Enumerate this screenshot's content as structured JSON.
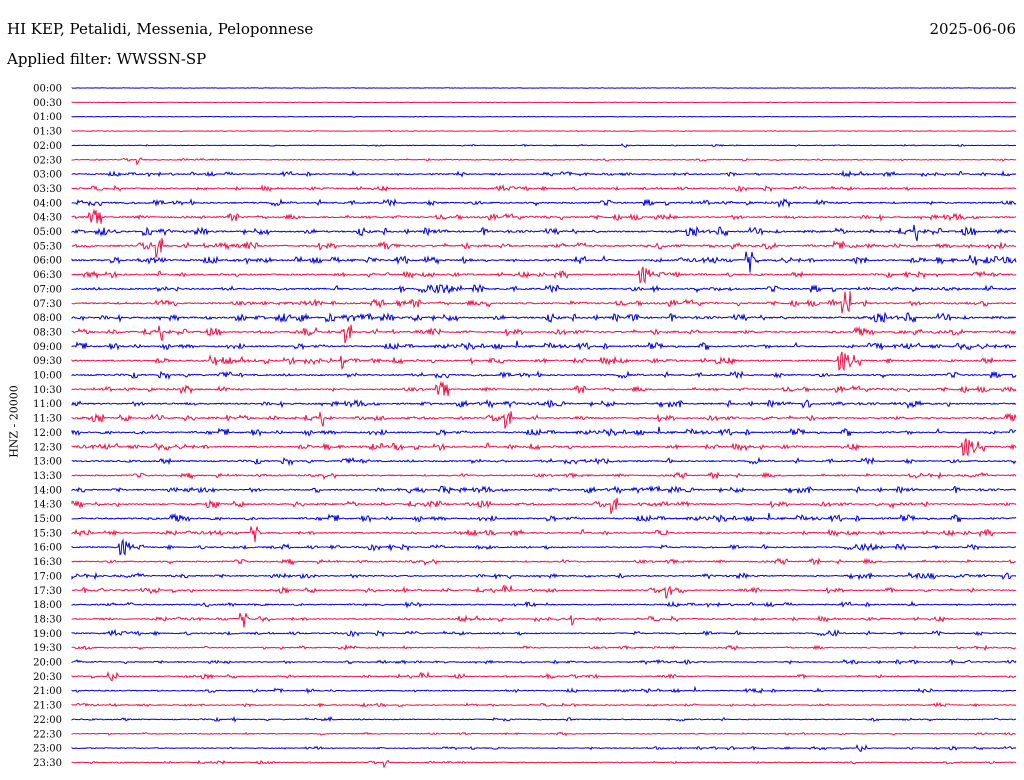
{
  "header": {
    "station": "HI KEP, Petalidi, Messenia, Peloponnese",
    "date": "2025-06-06",
    "filter": "Applied filter: WWSSN-SP",
    "channel_label": "HNZ - 20000"
  },
  "colors": {
    "blue": "#0000dd",
    "red": "#ee1144"
  },
  "chart_data": {
    "type": "line",
    "title": "HI KEP, Petalidi, Messenia, Peloponnese",
    "ylabel": "HNZ - 20000",
    "grid": false,
    "series_colors_alternate": [
      "blue",
      "red"
    ],
    "rows": [
      {
        "label": "00:00",
        "activity": 0.05
      },
      {
        "label": "00:30",
        "activity": 0.0
      },
      {
        "label": "01:00",
        "activity": 0.05
      },
      {
        "label": "01:30",
        "activity": 0.1
      },
      {
        "label": "02:00",
        "activity": 0.15
      },
      {
        "label": "02:30",
        "activity": 0.3
      },
      {
        "label": "03:00",
        "activity": 0.5
      },
      {
        "label": "03:30",
        "activity": 0.55
      },
      {
        "label": "04:00",
        "activity": 0.75
      },
      {
        "label": "04:30",
        "activity": 0.75
      },
      {
        "label": "05:00",
        "activity": 0.8
      },
      {
        "label": "05:30",
        "activity": 0.8
      },
      {
        "label": "06:00",
        "activity": 0.8
      },
      {
        "label": "06:30",
        "activity": 0.65
      },
      {
        "label": "07:00",
        "activity": 0.85
      },
      {
        "label": "07:30",
        "activity": 0.8
      },
      {
        "label": "08:00",
        "activity": 0.85
      },
      {
        "label": "08:30",
        "activity": 0.75
      },
      {
        "label": "09:00",
        "activity": 0.7
      },
      {
        "label": "09:30",
        "activity": 0.75
      },
      {
        "label": "10:00",
        "activity": 0.75
      },
      {
        "label": "10:30",
        "activity": 0.75
      },
      {
        "label": "11:00",
        "activity": 0.75
      },
      {
        "label": "11:30",
        "activity": 0.7
      },
      {
        "label": "12:00",
        "activity": 0.7
      },
      {
        "label": "12:30",
        "activity": 0.7
      },
      {
        "label": "13:00",
        "activity": 0.7
      },
      {
        "label": "13:30",
        "activity": 0.6
      },
      {
        "label": "14:00",
        "activity": 0.7
      },
      {
        "label": "14:30",
        "activity": 0.65
      },
      {
        "label": "15:00",
        "activity": 0.7
      },
      {
        "label": "15:30",
        "activity": 0.6
      },
      {
        "label": "16:00",
        "activity": 0.6
      },
      {
        "label": "16:30",
        "activity": 0.6
      },
      {
        "label": "17:00",
        "activity": 0.6
      },
      {
        "label": "17:30",
        "activity": 0.55
      },
      {
        "label": "18:00",
        "activity": 0.5
      },
      {
        "label": "18:30",
        "activity": 0.55
      },
      {
        "label": "19:00",
        "activity": 0.55
      },
      {
        "label": "19:30",
        "activity": 0.45
      },
      {
        "label": "20:00",
        "activity": 0.45
      },
      {
        "label": "20:30",
        "activity": 0.4
      },
      {
        "label": "21:00",
        "activity": 0.4
      },
      {
        "label": "21:30",
        "activity": 0.35
      },
      {
        "label": "22:00",
        "activity": 0.4
      },
      {
        "label": "22:30",
        "activity": 0.3
      },
      {
        "label": "23:00",
        "activity": 0.3
      },
      {
        "label": "23:30",
        "activity": 0.3
      }
    ]
  }
}
